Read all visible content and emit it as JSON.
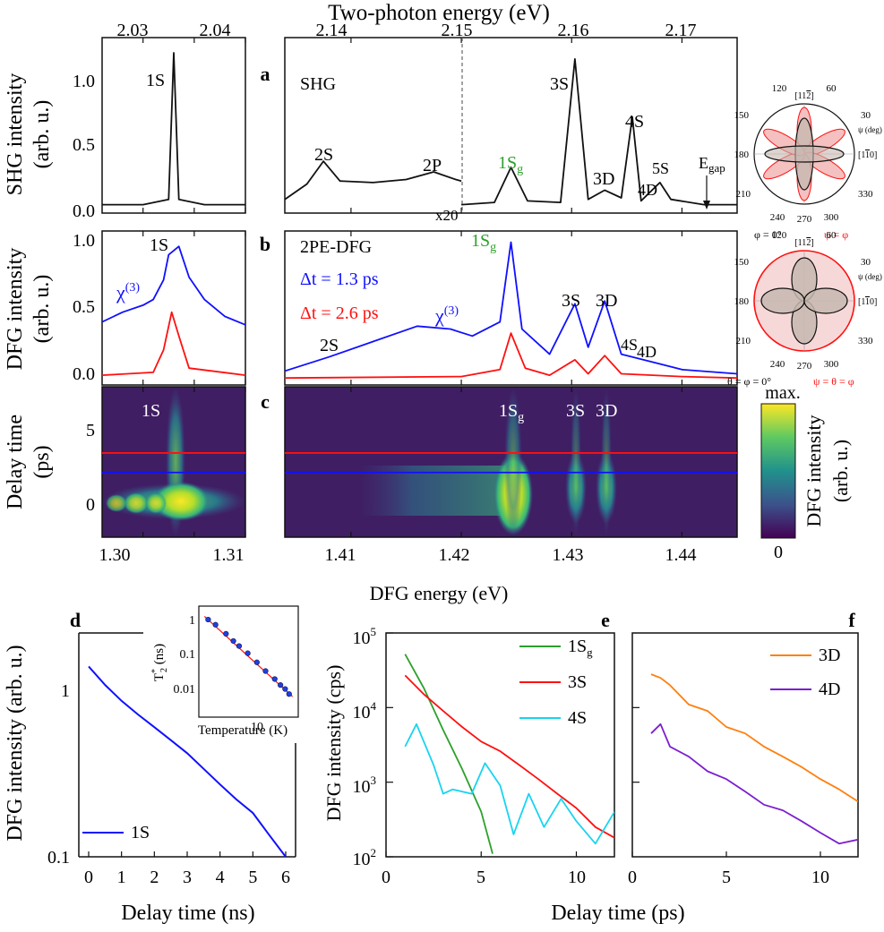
{
  "colors": {
    "black": "#111111",
    "blue": "#1010ff",
    "red": "#ff1010",
    "green": "#2ca02c",
    "orange": "#ff7f0e",
    "purple": "#7b1fd0",
    "cyan": "#17d4f0",
    "gray_dash": "#666666"
  },
  "top_axis_label": "Two-photon energy (eV)",
  "bottom_axis_label": "DFG energy (eV)",
  "panel_a": {
    "letter": "a",
    "ylabel": "SHG intensity",
    "yunit": "(arb. u.)",
    "text_shg": "SHG",
    "x20_label": "x20",
    "egap_label": "E",
    "egap_sub": "gap",
    "peaks": [
      "1S",
      "2S",
      "2P",
      "3S",
      "3D",
      "4S",
      "4D",
      "5S"
    ],
    "peak_1sg": "1S",
    "peak_1sg_sub": "g"
  },
  "panel_b": {
    "letter": "b",
    "ylabel": "DFG intensity",
    "yunit": "(arb. u.)",
    "text_2pe": "2PE-DFG",
    "dt_blue": "Δt = 1.3 ps",
    "dt_red": "Δt = 2.6 ps",
    "chi": "χ",
    "chi_sup": "(3)",
    "peaks": [
      "1S",
      "2S",
      "3S",
      "3D",
      "4S",
      "4D"
    ],
    "peak_1sg": "1S",
    "peak_1sg_sub": "g"
  },
  "panel_c": {
    "letter": "c",
    "ylabel": "Delay time",
    "yunit": "(ps)",
    "peaks": [
      "1S",
      "3S",
      "3D"
    ],
    "peak_1sg": "1S",
    "peak_1sg_sub": "g",
    "colorbar_max": "max.",
    "colorbar_min": "0",
    "colorbar_label": "DFG intensity",
    "colorbar_unit": "(arb. u.)",
    "delay_lines_ps": [
      1.3,
      2.6
    ]
  },
  "polar": {
    "angles": [
      "120",
      "60",
      "150",
      "30",
      "180",
      "210",
      "330",
      "240",
      "270",
      "300"
    ],
    "top_dir": "[11",
    "top_dir_bar": "2",
    "top_dir_close": "]",
    "right_dir": "[1",
    "right_dir_bar": "1",
    "right_dir_close": "0]",
    "psi_deg": "ψ (deg)",
    "upper_left": "φ = 0°",
    "upper_right": "ψ = φ",
    "lower_left": "θ = φ = 0°",
    "lower_right": "ψ = θ = φ"
  },
  "panel_d": {
    "letter": "d",
    "ylabel": "DFG intensity (arb. u.)",
    "xlabel": "Delay time (ns)",
    "legend": "1S",
    "inset_xlabel": "Temperature (K)",
    "inset_ylabel": "T",
    "inset_ylabel_sup": "*",
    "inset_ylabel_sub": "2",
    "inset_ylabel_unit": " (ns)",
    "inset_ticks_x": [
      "10"
    ],
    "inset_ticks_y": [
      "1",
      "0.1",
      "0.01"
    ]
  },
  "panel_e": {
    "letter": "e",
    "ylabel": "DFG intensity (cps)",
    "legend": [
      "1S",
      "3S",
      "4S"
    ],
    "legend_1s_sub": "g"
  },
  "panel_f": {
    "letter": "f",
    "legend": [
      "3D",
      "4D"
    ]
  },
  "shared_xlabel_ef": "Delay time (ps)",
  "chart_data": [
    {
      "id": "a",
      "type": "line",
      "ylim": [
        -0.05,
        1.1
      ],
      "top_axis_ticks_left": [
        "2.03",
        "2.04"
      ],
      "top_axis_ticks_right": [
        "2.14",
        "2.15",
        "2.16",
        "2.17"
      ],
      "yticks": [
        "0.0",
        "0.5",
        "1.0"
      ],
      "series": [
        {
          "name": "SHG",
          "x": [
            1.296,
            1.3,
            1.3025,
            1.303,
            1.3035,
            1.306,
            1.31
          ],
          "values": [
            0.005,
            0.005,
            0.04,
            1.0,
            0.04,
            0.005,
            0.005
          ]
        },
        {
          "name": "SHG x20",
          "x": [
            1.404,
            1.406,
            1.4075,
            1.409,
            1.412,
            1.415,
            1.4175,
            1.4195,
            1.42
          ],
          "values": [
            0.04,
            0.14,
            0.29,
            0.16,
            0.15,
            0.17,
            0.22,
            0.17,
            0.16
          ]
        },
        {
          "name": "SHG",
          "x": [
            1.42,
            1.423,
            1.4245,
            1.426,
            1.429,
            1.4303,
            1.4315,
            1.433,
            1.4345,
            1.4355,
            1.4363,
            1.437,
            1.438,
            1.439,
            1.442,
            1.445
          ],
          "values": [
            0.005,
            0.02,
            0.25,
            0.03,
            0.02,
            0.96,
            0.04,
            0.1,
            0.05,
            0.58,
            0.03,
            0.08,
            0.15,
            0.04,
            0.005,
            0.005
          ]
        }
      ]
    },
    {
      "id": "b",
      "type": "line",
      "ylim": [
        -0.05,
        1.05
      ],
      "yticks": [
        "0.0",
        "0.5",
        "1.0"
      ],
      "series": [
        {
          "name": "Δt = 1.3 ps",
          "x": [
            1.296,
            1.298,
            1.3,
            1.301,
            1.302,
            1.3025,
            1.3035,
            1.3045,
            1.306,
            1.308,
            1.31,
            1.404,
            1.408,
            1.412,
            1.416,
            1.419,
            1.421,
            1.4235,
            1.4245,
            1.4255,
            1.428,
            1.4303,
            1.4315,
            1.433,
            1.4345,
            1.437,
            1.44,
            1.445
          ],
          "values": [
            0.4,
            0.47,
            0.52,
            0.56,
            0.7,
            0.88,
            0.94,
            0.72,
            0.56,
            0.44,
            0.38,
            0.05,
            0.15,
            0.26,
            0.37,
            0.35,
            0.3,
            0.4,
            0.97,
            0.35,
            0.17,
            0.53,
            0.22,
            0.55,
            0.17,
            0.12,
            0.06,
            0.03
          ]
        },
        {
          "name": "Δt = 2.6 ps",
          "x": [
            1.296,
            1.301,
            1.302,
            1.3028,
            1.3035,
            1.3045,
            1.31,
            1.404,
            1.42,
            1.4235,
            1.4245,
            1.4258,
            1.428,
            1.4303,
            1.4315,
            1.433,
            1.4345,
            1.44,
            1.445
          ],
          "values": [
            0.02,
            0.04,
            0.2,
            0.47,
            0.3,
            0.07,
            0.02,
            0.0,
            0.01,
            0.06,
            0.32,
            0.07,
            0.02,
            0.13,
            0.03,
            0.16,
            0.03,
            0.01,
            0.0
          ]
        }
      ]
    },
    {
      "id": "c",
      "type": "heatmap",
      "xlim_left": [
        1.296,
        1.31
      ],
      "xlim_right": [
        1.404,
        1.445
      ],
      "xticks_left": [
        "1.30",
        "1.31"
      ],
      "xticks_right": [
        "1.41",
        "1.42",
        "1.43",
        "1.44"
      ],
      "ylim": [
        -3,
        7
      ],
      "yticks": [
        "0",
        "5"
      ]
    },
    {
      "id": "d",
      "type": "line",
      "x": [
        0,
        0.5,
        1,
        1.5,
        2,
        2.5,
        3,
        3.5,
        4,
        4.5,
        5,
        5.5,
        6
      ],
      "values": [
        1.0,
        0.8,
        0.66,
        0.56,
        0.48,
        0.41,
        0.35,
        0.29,
        0.24,
        0.2,
        0.17,
        0.13,
        0.1
      ],
      "xlim": [
        -0.3,
        6.3
      ],
      "ylim": [
        0.1,
        1.5
      ],
      "log_y": true,
      "xticks": [
        "0",
        "1",
        "2",
        "3",
        "4",
        "5",
        "6"
      ],
      "yticks": [
        "0.1",
        "1"
      ]
    },
    {
      "id": "d_inset",
      "type": "scatter",
      "x": [
        1.5,
        2,
        3,
        4,
        5,
        7,
        10,
        14,
        20,
        25,
        30,
        35
      ],
      "values": [
        2.0,
        1.5,
        0.9,
        0.6,
        0.45,
        0.3,
        0.18,
        0.11,
        0.07,
        0.05,
        0.04,
        0.03
      ],
      "log_x": true,
      "log_y": true
    },
    {
      "id": "e",
      "type": "line",
      "xlim": [
        0,
        12
      ],
      "ylim": [
        100,
        100000
      ],
      "log_y": true,
      "xticks": [
        "0",
        "5",
        "10"
      ],
      "yticks": [
        "10",
        "10",
        "10",
        "10"
      ],
      "yticks_exp": [
        "2",
        "3",
        "4",
        "5"
      ],
      "series": [
        {
          "name": "1Sg",
          "x": [
            1,
            2,
            3,
            4,
            5,
            5.6
          ],
          "values": [
            52000,
            18000,
            5000,
            1500,
            400,
            110
          ]
        },
        {
          "name": "3S",
          "x": [
            1,
            2,
            3,
            4,
            5,
            6,
            7,
            8,
            9,
            10,
            11,
            12
          ],
          "values": [
            27000,
            15000,
            9000,
            5500,
            3500,
            2600,
            1700,
            1100,
            700,
            450,
            250,
            180
          ]
        },
        {
          "name": "4S",
          "x": [
            1,
            1.6,
            2.5,
            3,
            3.5,
            4.5,
            5.2,
            6,
            6.7,
            7.5,
            8.3,
            9.2,
            10,
            11,
            12
          ],
          "values": [
            3000,
            6000,
            1700,
            700,
            800,
            700,
            1800,
            900,
            200,
            700,
            250,
            600,
            300,
            150,
            400
          ]
        }
      ]
    },
    {
      "id": "f",
      "type": "line",
      "xlim": [
        0,
        12
      ],
      "ylim": [
        100,
        100000
      ],
      "log_y": true,
      "xticks": [
        "0",
        "5",
        "10"
      ],
      "series": [
        {
          "name": "3D",
          "x": [
            1,
            1.5,
            2,
            3,
            4,
            5,
            6,
            7,
            8,
            9,
            10,
            11,
            12
          ],
          "values": [
            28000,
            25000,
            20000,
            11000,
            9000,
            5500,
            4500,
            3000,
            2200,
            1600,
            1100,
            800,
            550
          ]
        },
        {
          "name": "4D",
          "x": [
            1,
            1.5,
            2,
            3,
            4,
            5,
            6,
            7,
            8,
            9,
            10,
            11,
            12
          ],
          "values": [
            4500,
            6000,
            3000,
            2200,
            1400,
            1100,
            750,
            500,
            420,
            300,
            210,
            150,
            170
          ]
        }
      ]
    }
  ]
}
